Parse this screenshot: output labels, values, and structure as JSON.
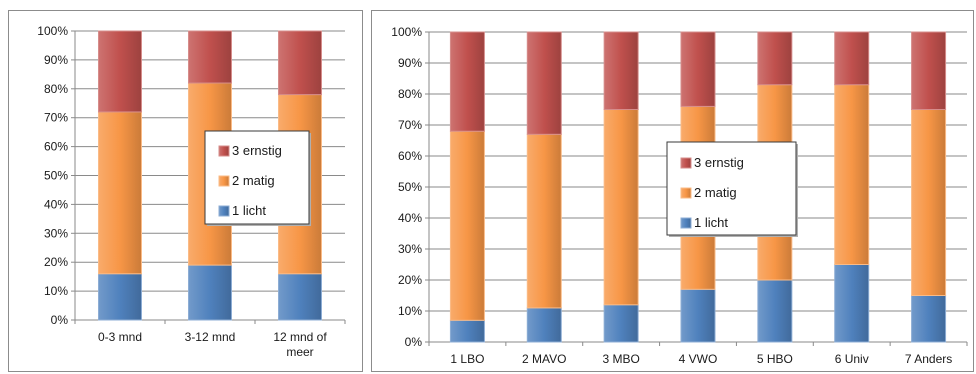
{
  "chart_data": [
    {
      "type": "bar",
      "stacked": true,
      "percent": true,
      "categories": [
        [
          "0-3 mnd"
        ],
        [
          "3-12 mnd"
        ],
        [
          "12 mnd of",
          "meer"
        ]
      ],
      "series": [
        {
          "name": "1 licht",
          "color": "#4f81bd",
          "values": [
            16,
            19,
            16
          ]
        },
        {
          "name": "2 matig",
          "color": "#f79646",
          "values": [
            56,
            63,
            62
          ]
        },
        {
          "name": "3 ernstig",
          "color": "#c0504d",
          "values": [
            28,
            18,
            22
          ]
        }
      ],
      "y_ticks": [
        "0%",
        "10%",
        "20%",
        "30%",
        "40%",
        "50%",
        "60%",
        "70%",
        "80%",
        "90%",
        "100%"
      ],
      "ylim": [
        0,
        100
      ],
      "grid": true,
      "legend": "center-right",
      "legend_order": [
        "3 ernstig",
        "2 matig",
        "1 licht"
      ]
    },
    {
      "type": "bar",
      "stacked": true,
      "percent": true,
      "categories": [
        [
          "1 LBO"
        ],
        [
          "2 MAVO"
        ],
        [
          "3 MBO"
        ],
        [
          "4 VWO"
        ],
        [
          "5 HBO"
        ],
        [
          "6 Univ"
        ],
        [
          "7 Anders"
        ]
      ],
      "series": [
        {
          "name": "1 licht",
          "color": "#4f81bd",
          "values": [
            7,
            11,
            12,
            17,
            20,
            25,
            15
          ]
        },
        {
          "name": "2 matig",
          "color": "#f79646",
          "values": [
            61,
            56,
            63,
            59,
            63,
            58,
            60
          ]
        },
        {
          "name": "3 ernstig",
          "color": "#c0504d",
          "values": [
            32,
            33,
            25,
            24,
            17,
            17,
            25
          ]
        }
      ],
      "y_ticks": [
        "0%",
        "10%",
        "20%",
        "30%",
        "40%",
        "50%",
        "60%",
        "70%",
        "80%",
        "90%",
        "100%"
      ],
      "ylim": [
        0,
        100
      ],
      "grid": true,
      "legend": "center",
      "legend_order": [
        "3 ernstig",
        "2 matig",
        "1 licht"
      ]
    }
  ]
}
